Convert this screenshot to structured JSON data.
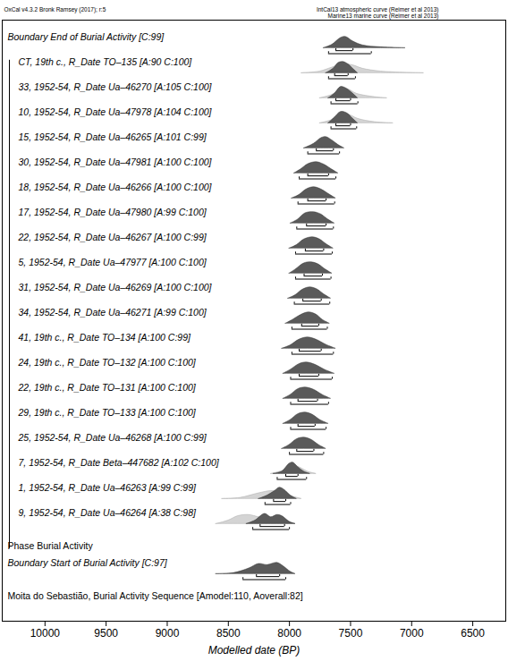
{
  "chart_data": {
    "type": "multiplot",
    "header": "OxCal v4.3.2 Bronk Ramsey (2017); r:5",
    "curve_notes": [
      "IntCal13 atmospheric curve (Reimer et al 2013)",
      "Marine13 marine curve (Reimer et al 2013)"
    ],
    "x_label": "Modelled date (BP)",
    "xlim": [
      10350,
      6230
    ],
    "xticks": [
      10000,
      9500,
      9000,
      8500,
      8000,
      7500,
      7000,
      6500
    ],
    "boundary_end": {
      "label": "Boundary End of Burial Activity [C:99]",
      "posterior": [
        [
          7720,
          0
        ],
        [
          7650,
          0.3
        ],
        [
          7580,
          0.9
        ],
        [
          7540,
          1
        ],
        [
          7480,
          0.6
        ],
        [
          7400,
          0.25
        ],
        [
          7250,
          0.08
        ],
        [
          7050,
          0
        ]
      ],
      "range68": [
        7620,
        7480
      ],
      "range95": [
        7680,
        7330
      ]
    },
    "phase": {
      "label": "Phase Burial Activity",
      "rows": [
        {
          "label": "CT, 19th c., R_Date TO–135 [A:90 C:100]",
          "prior": [
            [
              7900,
              0
            ],
            [
              7750,
              0.15
            ],
            [
              7650,
              0.5
            ],
            [
              7560,
              0.8
            ],
            [
              7480,
              0.7
            ],
            [
              7400,
              0.4
            ],
            [
              7250,
              0.15
            ],
            [
              6900,
              0
            ]
          ],
          "posterior": [
            [
              7700,
              0
            ],
            [
              7640,
              0.4
            ],
            [
              7600,
              0.9
            ],
            [
              7560,
              1
            ],
            [
              7520,
              0.8
            ],
            [
              7480,
              0.4
            ],
            [
              7440,
              0
            ]
          ],
          "range68": [
            7630,
            7520
          ],
          "range95": [
            7680,
            7460
          ]
        },
        {
          "label": "33, 1952-54, R_Date Ua–46270 [A:105 C:100]",
          "prior": [
            [
              7750,
              0
            ],
            [
              7650,
              0.3
            ],
            [
              7580,
              0.8
            ],
            [
              7520,
              0.8
            ],
            [
              7450,
              0.4
            ],
            [
              7300,
              0.1
            ],
            [
              7200,
              0
            ]
          ],
          "posterior": [
            [
              7680,
              0
            ],
            [
              7630,
              0.4
            ],
            [
              7580,
              1
            ],
            [
              7540,
              0.9
            ],
            [
              7490,
              0.5
            ],
            [
              7440,
              0
            ]
          ],
          "range68": [
            7620,
            7500
          ],
          "range95": [
            7660,
            7440
          ]
        },
        {
          "label": "10, 1952-54, R_Date Ua–47978 [A:104 C:100]",
          "prior": [
            [
              7750,
              0
            ],
            [
              7650,
              0.3
            ],
            [
              7580,
              0.8
            ],
            [
              7520,
              0.8
            ],
            [
              7440,
              0.4
            ],
            [
              7300,
              0.1
            ],
            [
              7150,
              0
            ]
          ],
          "posterior": [
            [
              7680,
              0
            ],
            [
              7630,
              0.5
            ],
            [
              7580,
              1
            ],
            [
              7530,
              0.9
            ],
            [
              7480,
              0.4
            ],
            [
              7440,
              0
            ]
          ],
          "range68": [
            7620,
            7500
          ],
          "range95": [
            7660,
            7450
          ]
        },
        {
          "label": "15, 1952-54, R_Date Ua–46265 [A:101 C:99]",
          "posterior": [
            [
              7880,
              0
            ],
            [
              7800,
              0.4
            ],
            [
              7740,
              0.9
            ],
            [
              7700,
              1
            ],
            [
              7650,
              0.7
            ],
            [
              7600,
              0.3
            ],
            [
              7550,
              0
            ]
          ],
          "range68": [
            7780,
            7640
          ],
          "range95": [
            7850,
            7590
          ]
        },
        {
          "label": "30, 1952-54, R_Date Ua–47981 [A:100 C:100]",
          "posterior": [
            [
              7960,
              0
            ],
            [
              7900,
              0.4
            ],
            [
              7850,
              0.8
            ],
            [
              7780,
              1
            ],
            [
              7720,
              0.8
            ],
            [
              7660,
              0.4
            ],
            [
              7600,
              0
            ]
          ],
          "range68": [
            7850,
            7680
          ],
          "range95": [
            7920,
            7620
          ]
        },
        {
          "label": "18, 1952-54, R_Date Ua–46266 [A:100 C:100]",
          "posterior": [
            [
              7980,
              0
            ],
            [
              7920,
              0.3
            ],
            [
              7860,
              0.8
            ],
            [
              7800,
              1
            ],
            [
              7740,
              0.8
            ],
            [
              7680,
              0.4
            ],
            [
              7620,
              0
            ]
          ],
          "range68": [
            7850,
            7700
          ],
          "range95": [
            7930,
            7630
          ]
        },
        {
          "label": "17, 1952-54, R_Date Ua–47980 [A:99 C:100]",
          "posterior": [
            [
              7990,
              0
            ],
            [
              7930,
              0.35
            ],
            [
              7870,
              0.9
            ],
            [
              7800,
              1
            ],
            [
              7740,
              0.8
            ],
            [
              7690,
              0.4
            ],
            [
              7630,
              0
            ]
          ],
          "range68": [
            7860,
            7700
          ],
          "range95": [
            7940,
            7640
          ]
        },
        {
          "label": "22, 1952-54, R_Date Ua–46267 [A:100 C:99]",
          "posterior": [
            [
              8000,
              0
            ],
            [
              7940,
              0.3
            ],
            [
              7880,
              0.8
            ],
            [
              7810,
              1
            ],
            [
              7750,
              0.8
            ],
            [
              7700,
              0.4
            ],
            [
              7640,
              0
            ]
          ],
          "range68": [
            7870,
            7720
          ],
          "range95": [
            7950,
            7650
          ]
        },
        {
          "label": "5, 1952-54, R_Date Ua–47977 [A:100 C:100]",
          "posterior": [
            [
              8000,
              0
            ],
            [
              7950,
              0.35
            ],
            [
              7880,
              0.9
            ],
            [
              7820,
              1
            ],
            [
              7760,
              0.8
            ],
            [
              7710,
              0.4
            ],
            [
              7650,
              0
            ]
          ],
          "range68": [
            7880,
            7730
          ],
          "range95": [
            7950,
            7660
          ]
        },
        {
          "label": "31, 1952-54, R_Date Ua–46269 [A:100 C:100]",
          "posterior": [
            [
              8010,
              0
            ],
            [
              7950,
              0.3
            ],
            [
              7890,
              0.8
            ],
            [
              7830,
              1
            ],
            [
              7770,
              0.8
            ],
            [
              7720,
              0.4
            ],
            [
              7660,
              0
            ]
          ],
          "range68": [
            7890,
            7740
          ],
          "range95": [
            7960,
            7670
          ]
        },
        {
          "label": "34, 1952-54, R_Date Ua–46271 [A:99 C:100]",
          "posterior": [
            [
              8030,
              0
            ],
            [
              7970,
              0.35
            ],
            [
              7900,
              0.8
            ],
            [
              7840,
              1
            ],
            [
              7780,
              0.8
            ],
            [
              7730,
              0.35
            ],
            [
              7670,
              0
            ]
          ],
          "range68": [
            7900,
            7760
          ],
          "range95": [
            7980,
            7690
          ]
        },
        {
          "label": "41, 19th c., R_Date TO–134 [A:100 C:99]",
          "posterior": [
            [
              8060,
              0
            ],
            [
              7990,
              0.3
            ],
            [
              7920,
              0.8
            ],
            [
              7850,
              1
            ],
            [
              7780,
              0.8
            ],
            [
              7700,
              0.35
            ],
            [
              7620,
              0
            ]
          ],
          "range68": [
            7920,
            7740
          ],
          "range95": [
            7980,
            7640
          ]
        },
        {
          "label": "24, 19th c., R_Date TO–132 [A:100 C:100]",
          "posterior": [
            [
              8050,
              0
            ],
            [
              7990,
              0.35
            ],
            [
              7920,
              0.85
            ],
            [
              7860,
              1
            ],
            [
              7790,
              0.8
            ],
            [
              7710,
              0.35
            ],
            [
              7630,
              0
            ]
          ],
          "range68": [
            7920,
            7760
          ],
          "range95": [
            7990,
            7650
          ]
        },
        {
          "label": "22, 19th c., R_Date TO–131 [A:100 C:100]",
          "posterior": [
            [
              8050,
              0
            ],
            [
              7990,
              0.35
            ],
            [
              7930,
              0.85
            ],
            [
              7870,
              1
            ],
            [
              7800,
              0.8
            ],
            [
              7730,
              0.35
            ],
            [
              7660,
              0
            ]
          ],
          "range68": [
            7930,
            7770
          ],
          "range95": [
            7990,
            7680
          ]
        },
        {
          "label": "29, 19th c., R_Date TO–133 [A:100 C:100]",
          "posterior": [
            [
              8050,
              0
            ],
            [
              7990,
              0.35
            ],
            [
              7930,
              0.85
            ],
            [
              7870,
              1
            ],
            [
              7810,
              0.8
            ],
            [
              7750,
              0.35
            ],
            [
              7680,
              0
            ]
          ],
          "range68": [
            7930,
            7790
          ],
          "range95": [
            7990,
            7700
          ]
        },
        {
          "label": "25, 1952-54, R_Date Ua–46268 [A:100 C:99]",
          "posterior": [
            [
              8060,
              0
            ],
            [
              8000,
              0.35
            ],
            [
              7940,
              0.85
            ],
            [
              7880,
              1
            ],
            [
              7820,
              0.8
            ],
            [
              7760,
              0.35
            ],
            [
              7700,
              0
            ]
          ],
          "range68": [
            7940,
            7800
          ],
          "range95": [
            8000,
            7720
          ]
        },
        {
          "label": "7, 1952-54, R_Date Beta–447682 [A:102 C:100]",
          "prior": [
            [
              8150,
              0
            ],
            [
              8050,
              0.3
            ],
            [
              7980,
              0.8
            ],
            [
              7920,
              0.6
            ],
            [
              7850,
              0.2
            ],
            [
              7780,
              0
            ]
          ],
          "posterior": [
            [
              8130,
              0
            ],
            [
              8060,
              0.2
            ],
            [
              8000,
              0.9
            ],
            [
              7970,
              1
            ],
            [
              7930,
              0.6
            ],
            [
              7880,
              0.2
            ],
            [
              7830,
              0
            ]
          ],
          "range68": [
            8030,
            7930
          ],
          "range95": [
            8100,
            7860
          ]
        },
        {
          "label": "1, 1952-54, R_Date Ua–46263 [A:99 C:99]",
          "prior": [
            [
              8550,
              0
            ],
            [
              8400,
              0.1
            ],
            [
              8250,
              0.5
            ],
            [
              8150,
              0.7
            ],
            [
              8080,
              0.6
            ],
            [
              8000,
              0.3
            ],
            [
              7900,
              0
            ]
          ],
          "posterior": [
            [
              8250,
              0
            ],
            [
              8180,
              0.3
            ],
            [
              8120,
              0.7
            ],
            [
              8080,
              1
            ],
            [
              8040,
              0.8
            ],
            [
              7990,
              0.3
            ],
            [
              7940,
              0
            ]
          ],
          "range68": [
            8130,
            8030
          ],
          "range95": [
            8200,
            7990
          ]
        },
        {
          "label": "9, 1952-54, R_Date Ua–46264 [A:38 C:98]",
          "prior": [
            [
              8600,
              0
            ],
            [
              8500,
              0.3
            ],
            [
              8420,
              0.7
            ],
            [
              8330,
              0.8
            ],
            [
              8250,
              0.6
            ],
            [
              8150,
              0.4
            ],
            [
              8050,
              0.1
            ],
            [
              7950,
              0
            ]
          ],
          "posterior": [
            [
              8350,
              0
            ],
            [
              8280,
              0.3
            ],
            [
              8200,
              0.9
            ],
            [
              8150,
              0.6
            ],
            [
              8100,
              0.8
            ],
            [
              8060,
              0.7
            ],
            [
              8000,
              0.2
            ],
            [
              7950,
              0
            ]
          ],
          "range68": [
            8240,
            8040
          ],
          "range95": [
            8300,
            8000
          ]
        }
      ]
    },
    "boundary_start": {
      "label": "Boundary Start of Burial Activity [C:97]",
      "posterior": [
        [
          8600,
          0
        ],
        [
          8450,
          0.1
        ],
        [
          8330,
          0.5
        ],
        [
          8250,
          0.9
        ],
        [
          8180,
          0.8
        ],
        [
          8100,
          1
        ],
        [
          8050,
          0.7
        ],
        [
          7990,
          0.2
        ],
        [
          7950,
          0
        ]
      ],
      "range68": [
        8270,
        8080
      ],
      "range95": [
        8380,
        8030
      ]
    },
    "sequence_label": "Moita do Sebastião, Burial Activity Sequence [Amodel:110, Aoverall:82]"
  }
}
